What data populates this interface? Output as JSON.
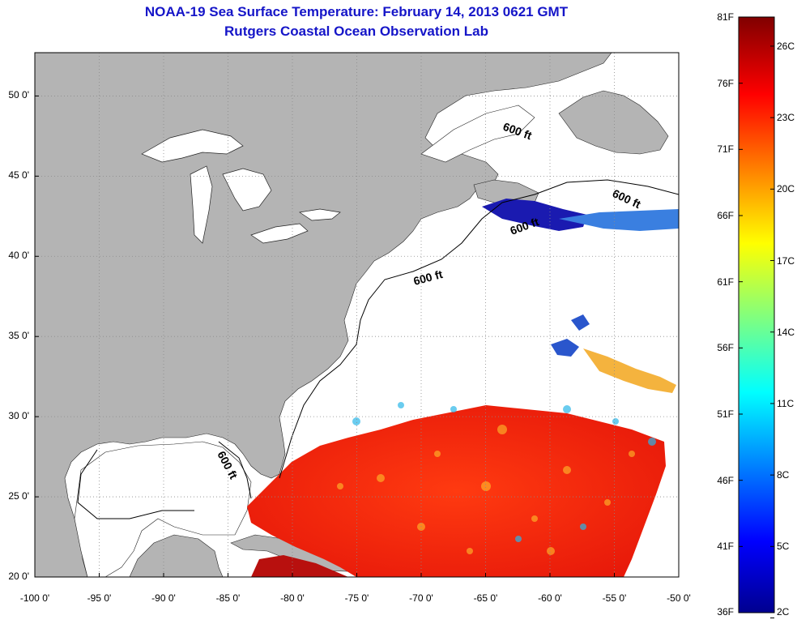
{
  "header": {
    "title": "NOAA-19 Sea Surface Temperature:  February 14, 2013 0621 GMT",
    "subtitle": "Rutgers Coastal Ocean Observation Lab"
  },
  "map": {
    "lat_ticks": [
      "50 0'",
      "45 0'",
      "40 0'",
      "35 0'",
      "30 0'",
      "25 0'",
      "20 0'"
    ],
    "lat_values": [
      50,
      45,
      40,
      35,
      30,
      25,
      20
    ],
    "lon_ticks": [
      "-100 0'",
      "-95 0'",
      "-90 0'",
      "-85 0'",
      "-80 0'",
      "-75 0'",
      "-70 0'",
      "-65 0'",
      "-60 0'",
      "-55 0'",
      "-50 0'"
    ],
    "lon_values": [
      -100,
      -95,
      -90,
      -85,
      -80,
      -75,
      -70,
      -65,
      -60,
      -55,
      -50
    ],
    "lon_range": [
      -100,
      -50
    ],
    "lat_range": [
      20,
      52.7
    ],
    "grid": true,
    "contour_labels": [
      "600 ft",
      "600 ft",
      "600 ft",
      "600 ft",
      "600 ft"
    ],
    "colors": {
      "land": "#b4b4b4",
      "ocean_no_data": "#ffffff",
      "grid": "#8a8a8a"
    }
  },
  "colorbar": {
    "f_labels": [
      "81F",
      "76F",
      "71F",
      "66F",
      "61F",
      "56F",
      "51F",
      "46F",
      "41F",
      "36F"
    ],
    "f_values": [
      81,
      76,
      71,
      66,
      61,
      56,
      51,
      46,
      41,
      36
    ],
    "c_labels": [
      "26C",
      "23C",
      "20C",
      "17C",
      "14C",
      "11C",
      "8C",
      "5C",
      "2C"
    ],
    "c_values": [
      26,
      23,
      20,
      17,
      14,
      11,
      8,
      5,
      2
    ],
    "range_f": [
      36,
      81
    ]
  }
}
